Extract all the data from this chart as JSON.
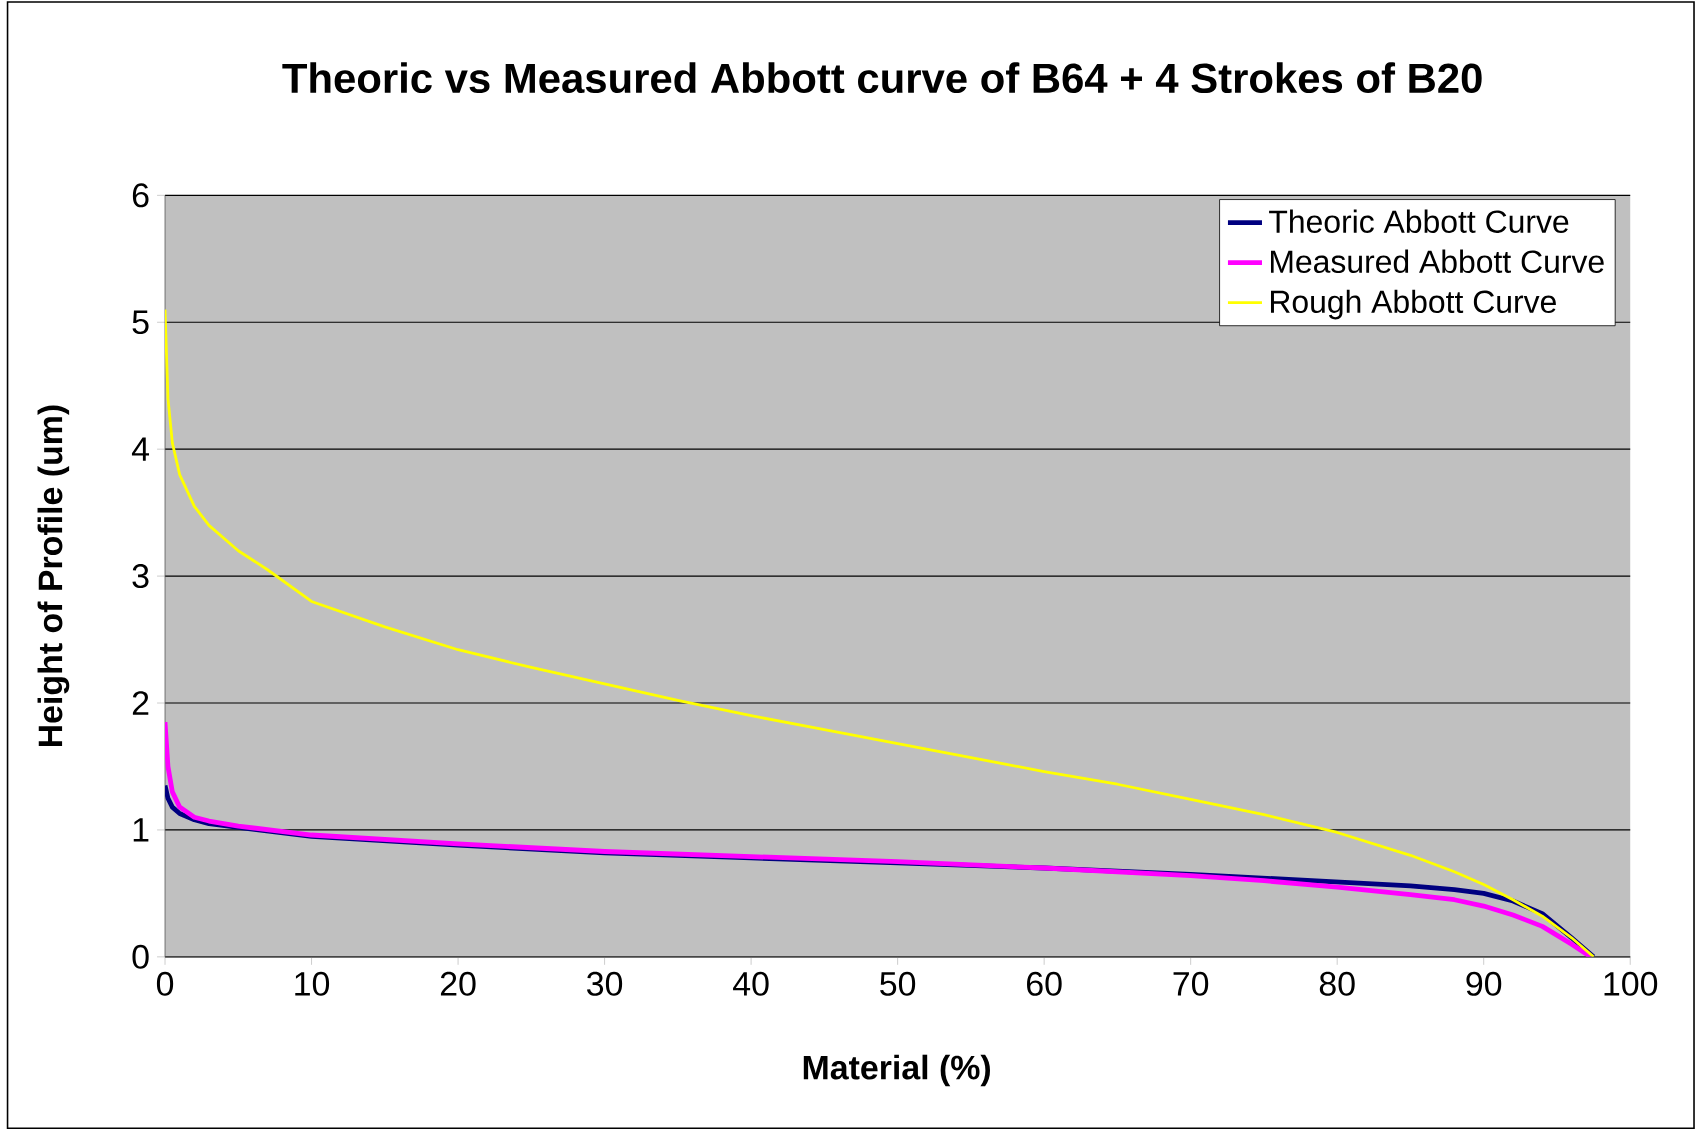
{
  "chart_data": {
    "type": "line",
    "title": "Theoric vs Measured Abbott curve of B64 + 4 Strokes of B20",
    "xlabel": "Material (%)",
    "ylabel": "Height of Profile (um)",
    "xlim": [
      0,
      100
    ],
    "xticks": [
      0,
      10,
      20,
      30,
      40,
      50,
      60,
      70,
      80,
      90,
      100
    ],
    "ylim": [
      0,
      6
    ],
    "yticks": [
      0,
      1,
      2,
      3,
      4,
      5,
      6
    ],
    "grid": "y",
    "legend": "top right",
    "marker": "none",
    "line_style": "solid",
    "series": [
      {
        "name": "Theoric Abbott Curve",
        "color": "#000080",
        "x": [
          0,
          0.2,
          0.5,
          1,
          2,
          3,
          5,
          10,
          20,
          30,
          40,
          50,
          60,
          70,
          75,
          80,
          85,
          88,
          90,
          92,
          94,
          96,
          97.5
        ],
        "values": [
          1.35,
          1.25,
          1.18,
          1.13,
          1.08,
          1.05,
          1.02,
          0.95,
          0.88,
          0.82,
          0.78,
          0.74,
          0.7,
          0.65,
          0.62,
          0.59,
          0.56,
          0.53,
          0.5,
          0.44,
          0.34,
          0.15,
          0
        ]
      },
      {
        "name": "Measured Abbott Curve",
        "color": "#ff00ff",
        "x": [
          0,
          0.2,
          0.5,
          1,
          2,
          3,
          5,
          10,
          20,
          30,
          40,
          50,
          60,
          70,
          75,
          80,
          85,
          88,
          90,
          92,
          94,
          96,
          97.3
        ],
        "values": [
          1.85,
          1.5,
          1.3,
          1.18,
          1.1,
          1.07,
          1.03,
          0.96,
          0.89,
          0.83,
          0.79,
          0.75,
          0.7,
          0.64,
          0.6,
          0.55,
          0.49,
          0.45,
          0.4,
          0.33,
          0.24,
          0.1,
          0
        ]
      },
      {
        "name": "Rough Abbott Curve",
        "color": "#ffff00",
        "x": [
          0,
          0.2,
          0.5,
          1,
          2,
          3,
          5,
          7,
          10,
          15,
          20,
          25,
          30,
          35,
          40,
          45,
          50,
          55,
          60,
          65,
          70,
          75,
          80,
          85,
          88,
          90,
          92,
          94,
          96,
          97.5
        ],
        "values": [
          5.1,
          4.4,
          4.05,
          3.8,
          3.55,
          3.4,
          3.2,
          3.05,
          2.8,
          2.6,
          2.42,
          2.28,
          2.15,
          2.02,
          1.9,
          1.79,
          1.68,
          1.57,
          1.46,
          1.36,
          1.24,
          1.12,
          0.98,
          0.8,
          0.67,
          0.57,
          0.45,
          0.32,
          0.15,
          0
        ]
      }
    ]
  }
}
